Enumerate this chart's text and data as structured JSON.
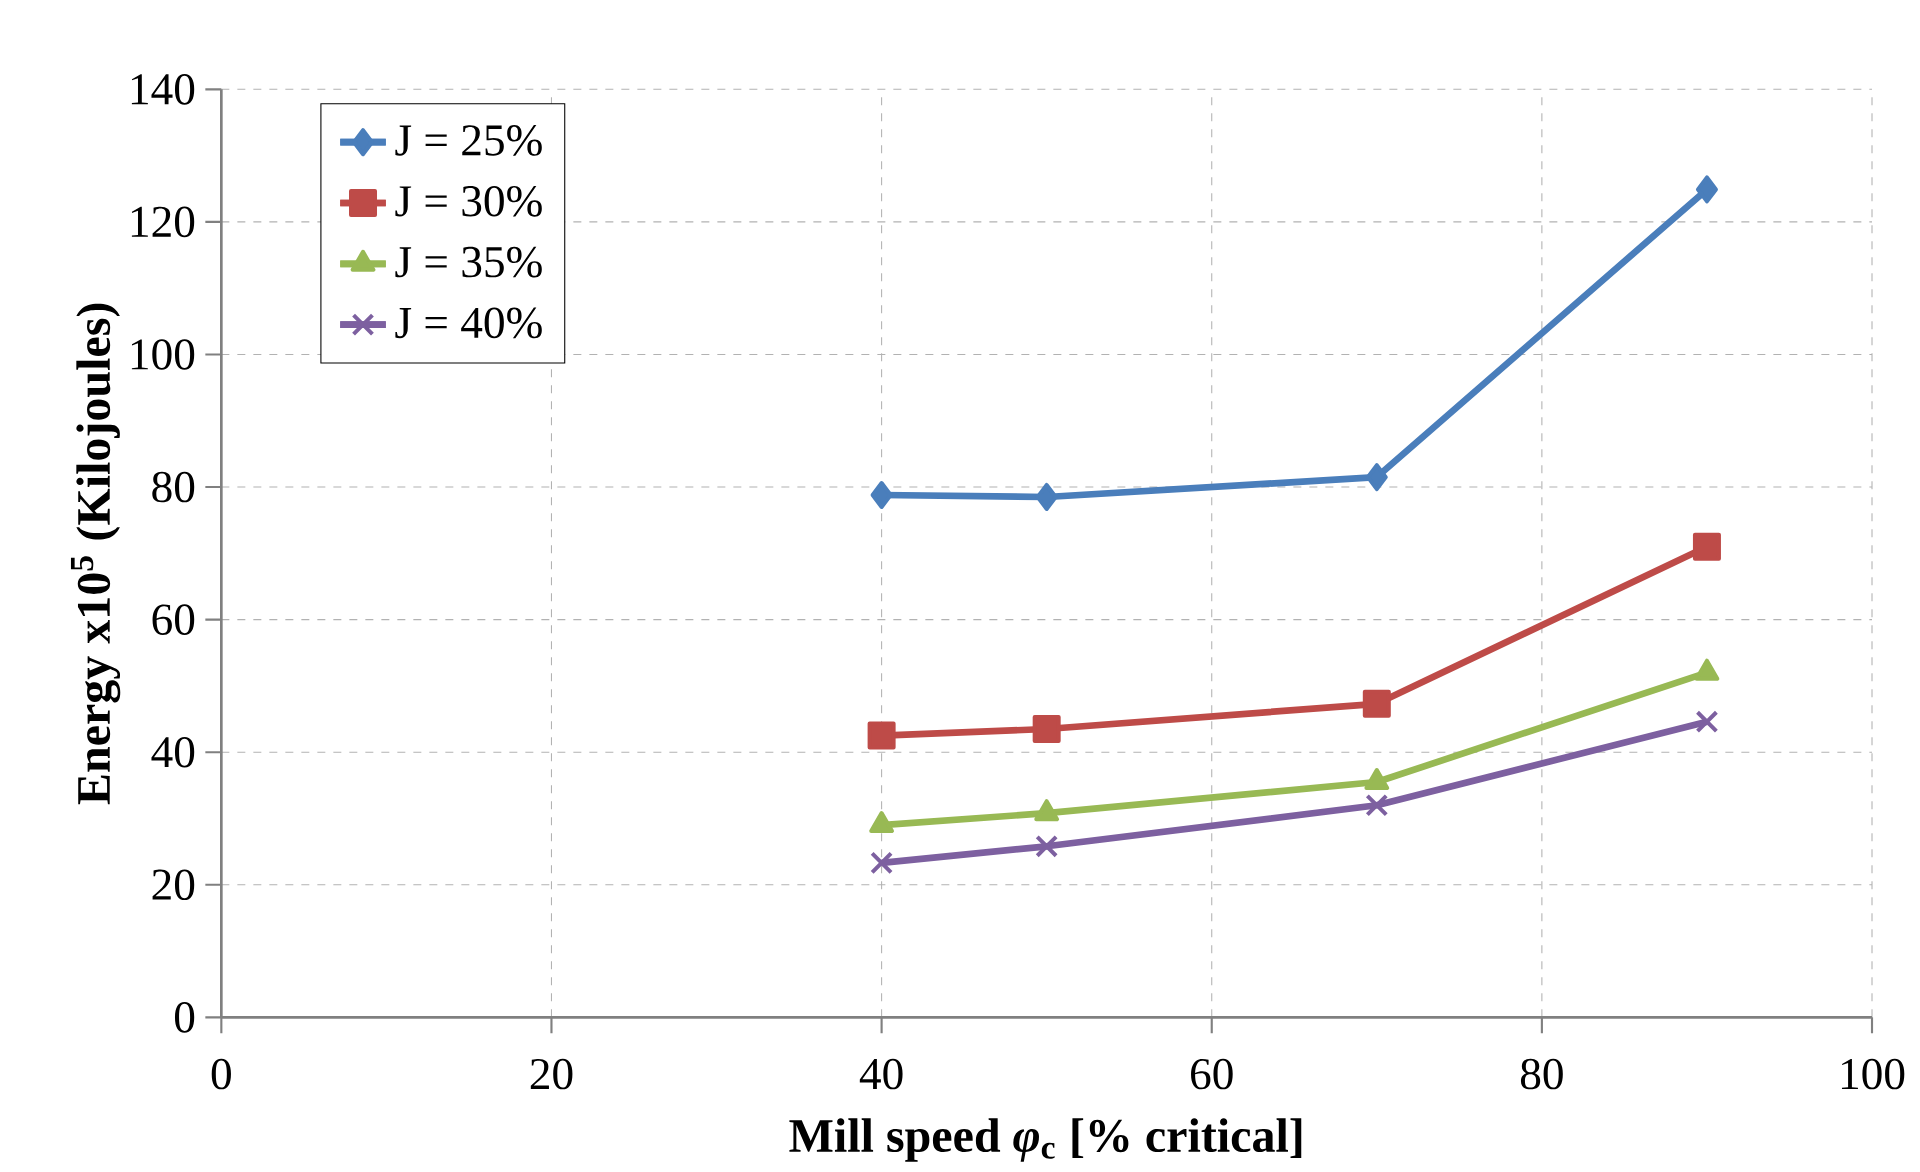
{
  "chart_data": {
    "type": "line",
    "xlabel": "Mill speed *φ*$_{c}$ [% critical]",
    "ylabel": "Energy x10$^{5}$  (Kilojoules)",
    "x": [
      40,
      50,
      70,
      90
    ],
    "series": [
      {
        "name": "J = 25%",
        "color": "#4a7ebb",
        "marker": "diamond",
        "values": [
          78.8,
          78.5,
          81.5,
          124.9
        ]
      },
      {
        "name": "J = 30%",
        "color": "#be4b48",
        "marker": "square",
        "values": [
          42.5,
          43.5,
          47.3,
          71.0
        ]
      },
      {
        "name": "J = 35%",
        "color": "#98b954",
        "marker": "triangle",
        "values": [
          29.0,
          30.8,
          35.5,
          52.0
        ]
      },
      {
        "name": "J = 40%",
        "color": "#7d60a0",
        "marker": "cross",
        "values": [
          23.3,
          25.8,
          32.0,
          44.6
        ]
      }
    ],
    "xlim": [
      0,
      100
    ],
    "ylim": [
      0,
      140
    ],
    "xticks": [
      0,
      20,
      40,
      60,
      80,
      100
    ],
    "yticks": [
      0,
      20,
      40,
      60,
      80,
      100,
      120,
      140
    ],
    "grid": true,
    "legend": "top left",
    "line_style": "solid"
  }
}
